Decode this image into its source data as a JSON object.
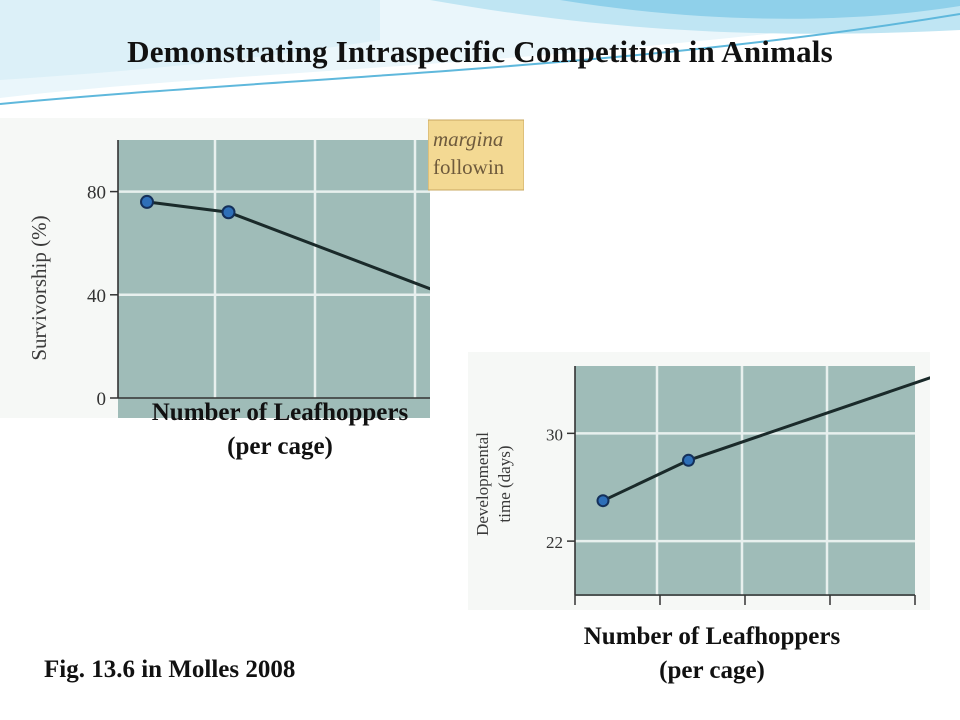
{
  "slide": {
    "title": "Demonstrating Intraspecific Competition in Animals",
    "caption": "Fig. 13.6 in Molles 2008",
    "colors": {
      "plot_bg": "#9fbcb8",
      "grid": "#e8f0ee",
      "line": "#1a2a2a",
      "marker": "#2e6fb8",
      "marker_edge": "#14305a",
      "note_bg": "#f3d993",
      "header_wave": "#8fd0ea"
    }
  },
  "note": {
    "line1": "margina",
    "line2": "followin"
  },
  "chart_data": [
    {
      "type": "line",
      "ylabel": "Survivorship (%)",
      "xlabel": "Number of Leafhoppers (per cage)",
      "xlabel_line1": "Number of Leafhoppers",
      "xlabel_line2": "(per cage)",
      "yticks": [
        0,
        40,
        80
      ],
      "ytick_labels": [
        "0",
        "40",
        "80"
      ],
      "ylim": [
        0,
        100
      ],
      "grid": true,
      "x": [
        1,
        2,
        5
      ],
      "y": [
        76,
        72,
        36
      ]
    },
    {
      "type": "line",
      "ylabel": "Developmental time (days)",
      "ylabel_line1": "Developmental",
      "ylabel_line2": "time (days)",
      "xlabel": "Number of Leafhoppers (per cage)",
      "xlabel_line1": "Number of Leafhoppers",
      "xlabel_line2": "(per cage)",
      "yticks": [
        22,
        30
      ],
      "ytick_labels": [
        "22",
        "30"
      ],
      "ylim": [
        18,
        35
      ],
      "grid": true,
      "x": [
        1,
        2,
        5
      ],
      "y": [
        25,
        28,
        34.5
      ]
    }
  ]
}
